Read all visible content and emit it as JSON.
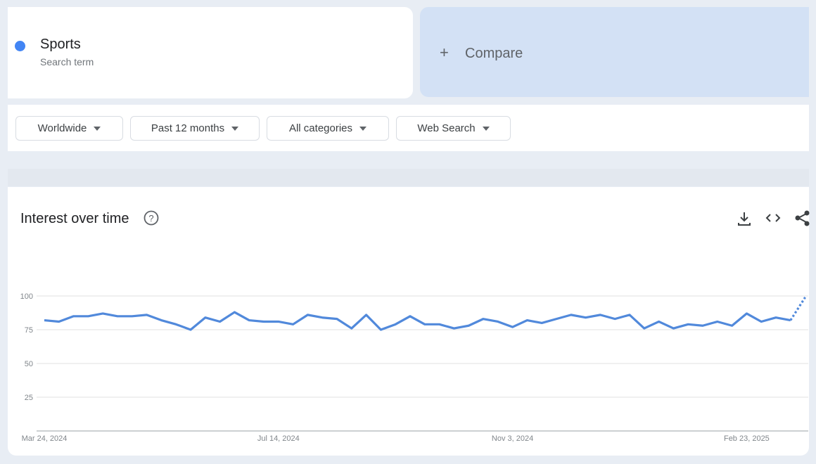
{
  "search_term": {
    "name": "Sports",
    "subtitle": "Search term",
    "color": "#4285f4"
  },
  "compare": "Compare",
  "filters": [
    "Worldwide",
    "Past 12 months",
    "All categories",
    "Web Search"
  ],
  "chart_data": {
    "type": "line",
    "title": "Interest over time",
    "categories": [
      "Mar 24, 2024",
      null,
      null,
      null,
      null,
      null,
      null,
      null,
      null,
      null,
      null,
      null,
      null,
      null,
      null,
      null,
      "Jul 14, 2024",
      null,
      null,
      null,
      null,
      null,
      null,
      null,
      null,
      null,
      null,
      null,
      null,
      null,
      null,
      null,
      "Nov 3, 2024",
      null,
      null,
      null,
      null,
      null,
      null,
      null,
      null,
      null,
      null,
      null,
      null,
      null,
      null,
      null,
      "Feb 23, 2025",
      null,
      null,
      null,
      null
    ],
    "values": [
      82,
      81,
      85,
      85,
      87,
      85,
      85,
      86,
      82,
      79,
      75,
      84,
      81,
      88,
      82,
      81,
      81,
      79,
      86,
      84,
      83,
      76,
      86,
      75,
      79,
      85,
      79,
      79,
      76,
      78,
      83,
      81,
      77,
      82,
      80,
      83,
      86,
      84,
      86,
      83,
      86,
      76,
      81,
      76,
      79,
      78,
      81,
      78,
      87,
      81,
      84,
      82,
      99
    ],
    "color": "#5189db",
    "partial_last": true,
    "ylim": [
      0,
      100
    ],
    "yticks": [
      25,
      50,
      75,
      100
    ],
    "grid": true
  }
}
